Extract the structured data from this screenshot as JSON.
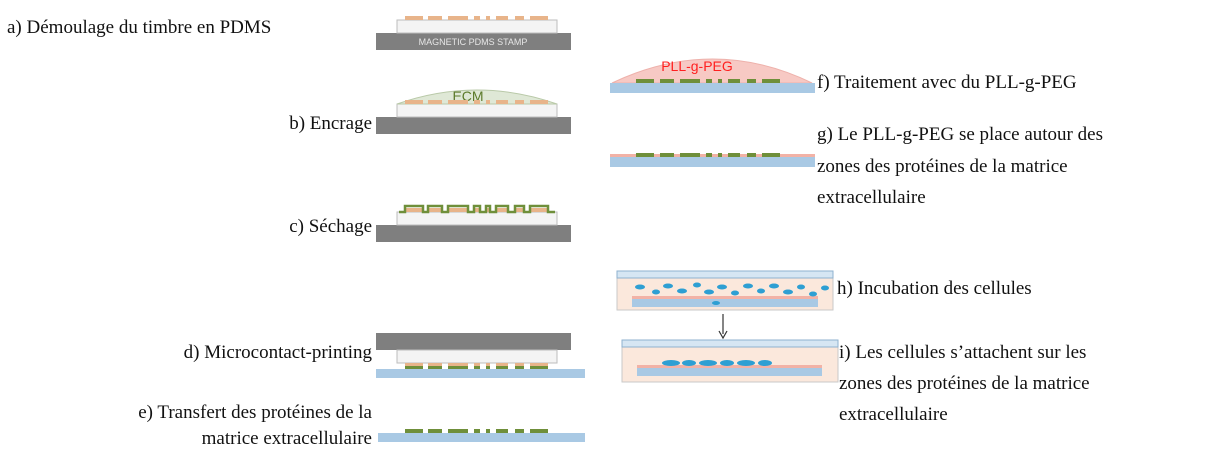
{
  "steps": {
    "a": "a) Démoulage du timbre en PDMS",
    "b": "b) Encrage",
    "c": "c) Séchage",
    "d": "d) Microcontact-printing",
    "e1": "e) Transfert des protéines de la",
    "e2": "matrice extracellulaire",
    "f": "f) Traitement avec du PLL-g-PEG",
    "g1": "g) Le PLL-g-PEG se place autour des",
    "g2": "zones des protéines de la matrice",
    "g3": "extracellulaire",
    "h": "h) Incubation des cellules",
    "i1": "i) Les cellules s’attachent sur les",
    "i2": "zones des protéines de la matrice",
    "i3": "extracellulaire"
  },
  "drawing_labels": {
    "stamp": "MAGNETIC PDMS STAMP",
    "ecm": "ECM",
    "pllpeg": "PLL-g-PEG"
  },
  "colors": {
    "stamp_base": "#7f7f7f",
    "stamp_body": "#f4f4f4",
    "ink_orange": "#e8b48a",
    "ecm_green": "#6f8f3a",
    "ecm_dome": "#dfe8d6",
    "glass_blue": "#a9c9e4",
    "peg_dome": "#f7c9c4",
    "peg_text": "#ff2020",
    "medium": "#fbe8dc",
    "cell_blue": "#2e9fd3"
  }
}
